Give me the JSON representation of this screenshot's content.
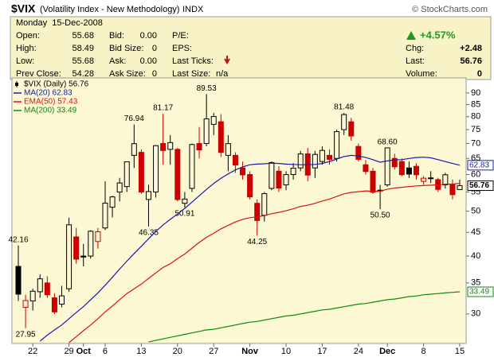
{
  "header": {
    "symbol": "$VIX",
    "name": "(Volatility Index - New Methodology)",
    "exchange": "INDX",
    "copyright": "© StockCharts.com",
    "date": "Monday  15-Dec-2008",
    "change_pct": "+4.57%",
    "fields": [
      {
        "label": "Open:",
        "value": "55.68"
      },
      {
        "label": "High:",
        "value": "58.49"
      },
      {
        "label": "Low:",
        "value": "55.68"
      },
      {
        "label": "Prev Close:",
        "value": "54.28"
      },
      {
        "label": "Bid:",
        "value": "0.00"
      },
      {
        "label": "Bid Size:",
        "value": "0"
      },
      {
        "label": "Ask:",
        "value": "0.00"
      },
      {
        "label": "Ask Size:",
        "value": "0"
      },
      {
        "label": "P/E:"
      },
      {
        "label": "EPS:"
      },
      {
        "label": "Last Ticks:"
      },
      {
        "label": "Last Size:",
        "value": "n/a"
      },
      {
        "label": "Chg:",
        "value": "+2.48"
      },
      {
        "label": "Last:",
        "value": "56.76"
      },
      {
        "label": "Volume:",
        "value": "0"
      }
    ]
  },
  "chart_data": {
    "type": "candlestick",
    "log_scale": true,
    "grid": false,
    "categories": [
      null,
      null,
      "22",
      null,
      null,
      null,
      null,
      "29",
      null,
      "Oct",
      null,
      null,
      "6",
      null,
      null,
      null,
      null,
      "13",
      null,
      null,
      null,
      null,
      "20",
      null,
      null,
      null,
      null,
      "27",
      null,
      null,
      null,
      null,
      "Nov",
      null,
      null,
      null,
      null,
      "10",
      null,
      null,
      null,
      null,
      "17",
      null,
      null,
      null,
      null,
      "24",
      null,
      null,
      null,
      "Dec",
      null,
      null,
      null,
      null,
      "8",
      null,
      null,
      null,
      null,
      "15"
    ],
    "ylim": [
      25.9,
      97
    ],
    "yticks": [
      30,
      35,
      40,
      45,
      50,
      55,
      60,
      65,
      70,
      75,
      80,
      85,
      90
    ],
    "series": [
      {
        "name": "$VIX (Daily) 56.76",
        "color": "#000000",
        "up_color": "#000000",
        "down_color": "#cc0000",
        "open": [
          38,
          31,
          32,
          33.5,
          35,
          32.5,
          31.5,
          34,
          44,
          40,
          40,
          43,
          46,
          51,
          55,
          56.5,
          66,
          67,
          53,
          55,
          70,
          68,
          68,
          52,
          56,
          70,
          70,
          77,
          78,
          66,
          66,
          62,
          60,
          52,
          49,
          56,
          61,
          57,
          60,
          62,
          66.5,
          62,
          64,
          66,
          65,
          75,
          78,
          69,
          63,
          61,
          55.5,
          57,
          65,
          64,
          62,
          62.5,
          58,
          59,
          58.5,
          57,
          57,
          55.68
        ],
        "high": [
          42.16,
          33,
          34,
          36.5,
          36.2,
          33.2,
          34.5,
          48.4,
          46,
          42.5,
          45.5,
          46,
          58,
          54,
          59,
          64,
          76.94,
          68,
          57,
          69.5,
          81.17,
          73,
          68.5,
          55,
          70,
          76,
          89.53,
          81.5,
          81,
          73,
          67,
          64,
          61,
          53,
          55,
          64,
          62.5,
          61,
          63.5,
          67.5,
          68.5,
          67.5,
          69,
          68,
          75,
          81.48,
          79.5,
          70,
          64.5,
          62,
          57,
          68.6,
          66.5,
          65,
          64,
          63.5,
          59.5,
          61,
          59,
          60.5,
          58.5,
          58.49
        ],
        "low": [
          32,
          27.95,
          30.5,
          32.5,
          32.5,
          30,
          31,
          33.5,
          38.5,
          38,
          39.5,
          41.5,
          45.5,
          48.5,
          52.5,
          55,
          62,
          54.5,
          46.35,
          53.5,
          63,
          63,
          52.5,
          50.91,
          55,
          65,
          69,
          73,
          65.5,
          61,
          60.5,
          58.5,
          53,
          44.25,
          47.5,
          55.5,
          55,
          55.5,
          58.5,
          61,
          58,
          59,
          63,
          63,
          64,
          73,
          71,
          64,
          60,
          54.5,
          50.5,
          56.5,
          61.5,
          59.5,
          59,
          58.5,
          57,
          57.5,
          55,
          56,
          53,
          55.68
        ],
        "close": [
          33.1,
          32.07,
          33.59,
          35.72,
          33,
          30.3,
          32.82,
          46.72,
          39.39,
          39.81,
          45.26,
          45.14,
          52.05,
          53.68,
          57.53,
          63.92,
          69.95,
          54.99,
          55.13,
          69.25,
          67.61,
          70.33,
          52.97,
          53.11,
          69.65,
          67.8,
          79.13,
          80.06,
          66.96,
          69.96,
          62.9,
          59.89,
          53.68,
          47.73,
          54.56,
          63.68,
          56.1,
          59.98,
          61.92,
          66.46,
          59.83,
          66.31,
          67.64,
          64.7,
          74.26,
          80.86,
          72.67,
          64.7,
          60.9,
          54.92,
          55.28,
          68.51,
          62.36,
          59.96,
          60.13,
          59.93,
          58.91,
          58.99,
          55.73,
          59.93,
          54.28,
          56.76
        ],
        "high_labels": [
          "42.16",
          null,
          null,
          null,
          null,
          null,
          null,
          null,
          null,
          null,
          null,
          null,
          null,
          null,
          null,
          null,
          "76.94",
          null,
          null,
          null,
          "81.17",
          null,
          null,
          null,
          null,
          null,
          "89.53",
          null,
          null,
          null,
          null,
          null,
          null,
          null,
          null,
          null,
          null,
          null,
          null,
          null,
          null,
          null,
          null,
          null,
          null,
          "81.48",
          null,
          null,
          null,
          null,
          null,
          "68.60",
          null,
          null,
          null,
          null,
          null,
          null,
          null,
          null,
          null,
          null
        ],
        "low_labels": [
          null,
          "27.95",
          null,
          null,
          null,
          null,
          null,
          null,
          null,
          null,
          null,
          null,
          null,
          null,
          null,
          null,
          null,
          null,
          "46.35",
          null,
          null,
          null,
          null,
          "50.91",
          null,
          null,
          null,
          null,
          null,
          null,
          null,
          null,
          null,
          "44.25",
          null,
          null,
          null,
          null,
          null,
          null,
          null,
          null,
          null,
          null,
          null,
          null,
          null,
          null,
          null,
          null,
          "50.50",
          null,
          null,
          null,
          null,
          null,
          null,
          null,
          null,
          null,
          null,
          null
        ]
      },
      {
        "name": "MA(20) 62.83",
        "color": "#1a1aaa",
        "values": [
          null,
          null,
          null,
          26.2,
          27,
          27.7,
          28.4,
          29.3,
          30.2,
          31.1,
          32.2,
          33.3,
          34.6,
          36,
          37.5,
          39,
          40.5,
          42,
          43.6,
          45.2,
          46.7,
          48,
          49.3,
          50.7,
          52.3,
          54,
          55.7,
          57.4,
          58.9,
          60.2,
          61.4,
          62.3,
          63,
          63.2,
          63.3,
          63.5,
          63.4,
          63.2,
          63.1,
          63,
          63,
          63.1,
          63.4,
          64,
          64.8,
          65.6,
          66,
          65.8,
          65.3,
          64.6,
          63.8,
          64.2,
          64.5,
          64.6,
          65,
          65.3,
          65.4,
          65.2,
          64.6,
          64,
          63.4,
          62.83
        ]
      },
      {
        "name": "EMA(50) 57.43",
        "color": "#dd1111",
        "values": [
          null,
          null,
          null,
          null,
          null,
          null,
          null,
          26,
          26.8,
          27.6,
          28.4,
          29.3,
          30.3,
          31.2,
          32.2,
          33.2,
          34,
          34.8,
          35.8,
          36.8,
          37.8,
          38.5,
          39.5,
          40.4,
          41.6,
          42.8,
          43.9,
          44.8,
          45.8,
          46.6,
          47.4,
          48,
          48.4,
          48.6,
          48.9,
          49.4,
          49.7,
          50.1,
          50.6,
          51.2,
          51.5,
          52,
          52.6,
          53.1,
          53.8,
          54.5,
          54.9,
          55.1,
          55.3,
          55.2,
          55.2,
          55.8,
          56.1,
          56.3,
          56.5,
          56.7,
          56.8,
          56.9,
          57,
          57.2,
          57.2,
          57.43
        ]
      },
      {
        "name": "MA(200) 33.49",
        "color": "#118811",
        "values": [
          null,
          null,
          null,
          null,
          null,
          null,
          null,
          null,
          null,
          null,
          null,
          null,
          null,
          null,
          null,
          null,
          null,
          null,
          26.1,
          26.3,
          26.5,
          26.7,
          26.9,
          27.1,
          27.3,
          27.5,
          27.7,
          27.8,
          28.0,
          28.2,
          28.4,
          28.6,
          28.8,
          28.9,
          29.1,
          29.3,
          29.5,
          29.7,
          29.8,
          30.0,
          30.2,
          30.4,
          30.6,
          30.7,
          30.9,
          31.1,
          31.3,
          31.5,
          31.6,
          31.8,
          32.0,
          32.2,
          32.3,
          32.5,
          32.7,
          32.8,
          33.0,
          33.1,
          33.2,
          33.3,
          33.4,
          33.49
        ]
      }
    ]
  }
}
